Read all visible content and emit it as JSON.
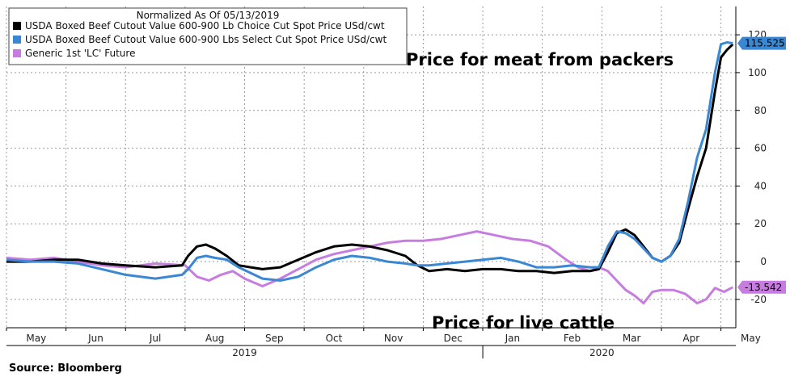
{
  "chart_data": {
    "type": "line",
    "legend_title": "Normalized As Of 05/13/2019",
    "source": "Source:  Bloomberg",
    "x_tick_labels": [
      "May",
      "Jun",
      "Jul",
      "Aug",
      "Sep",
      "Oct",
      "Nov",
      "Dec",
      "Jan",
      "Feb",
      "Mar",
      "Apr",
      "May"
    ],
    "x_year_labels": [
      "2019",
      "2020"
    ],
    "x_range": [
      0,
      12.25
    ],
    "ylim": [
      -35,
      135
    ],
    "y_ticks": [
      -20,
      0,
      20,
      40,
      60,
      80,
      100,
      120
    ],
    "grid": true,
    "legend_placement": "top-left",
    "annotations": [
      "Price for meat from packers",
      "Price for live cattle"
    ],
    "last_value_tags": [
      {
        "series": "USDA Boxed Beef Cutout Value 600-900 Lbs Select Cut Spot Price USd/cwt",
        "text": "115.525"
      },
      {
        "series": "Generic 1st 'LC' Future",
        "text": "-13.542"
      }
    ],
    "series": [
      {
        "name": "USDA Boxed Beef Cutout Value 600-900 Lb Choice Cut Spot Price USd/cwt",
        "color": "#000000",
        "x": [
          0,
          0.4,
          0.8,
          1.2,
          1.6,
          2.0,
          2.5,
          2.95,
          3.05,
          3.2,
          3.35,
          3.5,
          3.7,
          3.9,
          4.1,
          4.3,
          4.6,
          4.9,
          5.2,
          5.5,
          5.8,
          6.1,
          6.4,
          6.7,
          6.9,
          7.1,
          7.4,
          7.7,
          8.0,
          8.3,
          8.6,
          8.9,
          9.2,
          9.5,
          9.8,
          9.95,
          10.1,
          10.25,
          10.4,
          10.55,
          10.7,
          10.85,
          11.0,
          11.15,
          11.3,
          11.45,
          11.6,
          11.75,
          11.9,
          12.0,
          12.1,
          12.2
        ],
        "y": [
          0,
          0,
          1,
          1,
          -1,
          -2,
          -3,
          -2,
          3,
          8,
          9,
          7,
          3,
          -2,
          -3,
          -4,
          -3,
          1,
          5,
          8,
          9,
          8,
          6,
          3,
          -2,
          -5,
          -4,
          -5,
          -4,
          -4,
          -5,
          -5,
          -6,
          -5,
          -5,
          -4,
          5,
          15,
          17,
          14,
          8,
          2,
          0,
          3,
          10,
          28,
          45,
          60,
          90,
          108,
          112,
          115
        ]
      },
      {
        "name": "USDA Boxed Beef Cutout Value 600-900 Lbs Select Cut Spot Price USd/cwt",
        "color": "#3a87d4",
        "x": [
          0,
          0.4,
          0.8,
          1.2,
          1.6,
          2.0,
          2.5,
          2.95,
          3.05,
          3.2,
          3.35,
          3.5,
          3.7,
          3.9,
          4.1,
          4.3,
          4.6,
          4.9,
          5.2,
          5.5,
          5.8,
          6.1,
          6.4,
          6.7,
          6.9,
          7.1,
          7.4,
          7.7,
          8.0,
          8.3,
          8.6,
          8.9,
          9.2,
          9.5,
          9.8,
          9.95,
          10.1,
          10.25,
          10.4,
          10.55,
          10.7,
          10.85,
          11.0,
          11.15,
          11.3,
          11.45,
          11.6,
          11.75,
          11.9,
          12.0,
          12.1,
          12.2
        ],
        "y": [
          1,
          0,
          0,
          -1,
          -4,
          -7,
          -9,
          -7,
          -4,
          2,
          3,
          2,
          1,
          -3,
          -6,
          -9,
          -10,
          -8,
          -3,
          1,
          3,
          2,
          0,
          -1,
          -2,
          -2,
          -1,
          0,
          1,
          2,
          0,
          -3,
          -3,
          -2,
          -3,
          -3,
          8,
          16,
          15,
          12,
          7,
          2,
          0,
          3,
          12,
          32,
          55,
          70,
          100,
          115,
          116,
          115.525
        ]
      },
      {
        "name": "Generic 1st 'LC' Future",
        "color": "#c77de0",
        "x": [
          0,
          0.4,
          0.8,
          1.2,
          1.6,
          2.0,
          2.5,
          3.0,
          3.2,
          3.4,
          3.6,
          3.8,
          4.0,
          4.3,
          4.6,
          4.9,
          5.2,
          5.5,
          5.8,
          6.1,
          6.4,
          6.7,
          7.0,
          7.3,
          7.6,
          7.9,
          8.2,
          8.5,
          8.8,
          9.1,
          9.4,
          9.6,
          9.8,
          9.95,
          10.1,
          10.25,
          10.4,
          10.55,
          10.7,
          10.85,
          11.0,
          11.2,
          11.4,
          11.6,
          11.75,
          11.9,
          12.05,
          12.2
        ],
        "y": [
          2,
          1,
          2,
          0,
          -2,
          -3,
          -1,
          -2,
          -8,
          -10,
          -7,
          -5,
          -9,
          -13,
          -9,
          -4,
          1,
          4,
          6,
          8,
          10,
          11,
          11,
          12,
          14,
          16,
          14,
          12,
          11,
          8,
          1,
          -3,
          -5,
          -3,
          -5,
          -10,
          -15,
          -18,
          -22,
          -16,
          -15,
          -15,
          -17,
          -22,
          -20,
          -14,
          -16,
          -13.542
        ]
      }
    ]
  }
}
